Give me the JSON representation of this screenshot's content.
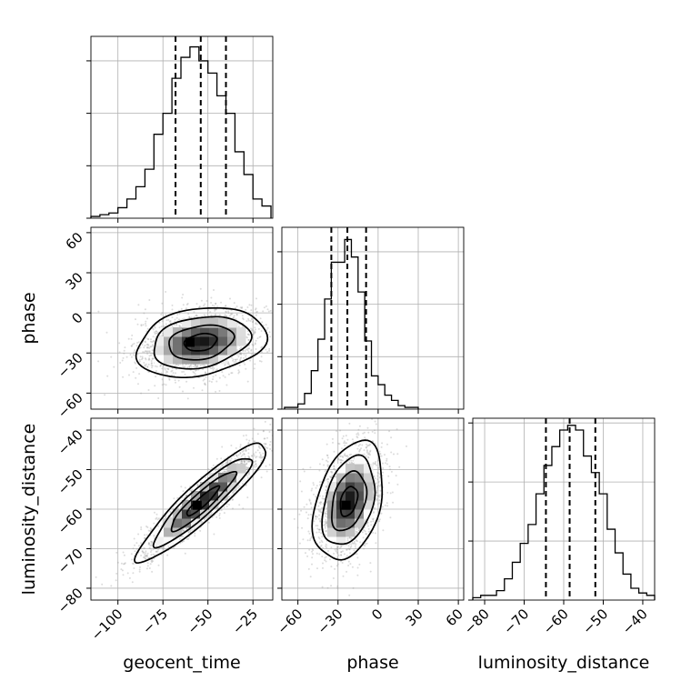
{
  "chart_data": {
    "type": "corner",
    "parameters": [
      "geocent_time",
      "phase",
      "luminosity_distance"
    ],
    "grid": true,
    "axes": {
      "geocent_time": {
        "range": [
          -115,
          -14
        ],
        "ticks": [
          -100,
          -75,
          -50,
          -25
        ],
        "tick_labels": [
          "−100",
          "−75",
          "−50",
          "−25"
        ]
      },
      "phase": {
        "range": [
          -72,
          64
        ],
        "ticks": [
          -60,
          -30,
          0,
          30,
          60
        ],
        "tick_labels": [
          "−60",
          "−30",
          "0",
          "30",
          "60"
        ]
      },
      "luminosity_distance": {
        "range": [
          -83,
          -37
        ],
        "ticks": [
          -80,
          -70,
          -60,
          -50,
          -40
        ],
        "tick_labels": [
          "−80",
          "−70",
          "−60",
          "−50",
          "−40"
        ]
      }
    },
    "histograms": [
      {
        "parameter": "geocent_time",
        "bin_edges": [
          -115,
          -110,
          -105,
          -100,
          -95,
          -90,
          -85,
          -80,
          -75,
          -70,
          -65,
          -60,
          -55,
          -50,
          -45,
          -40,
          -35,
          -30,
          -25,
          -20,
          -15
        ],
        "counts": [
          1,
          2,
          3,
          6,
          11,
          18,
          28,
          48,
          60,
          80,
          92,
          98,
          90,
          83,
          70,
          60,
          38,
          25,
          11,
          7
        ],
        "quantiles": [
          -68,
          -54,
          -40
        ],
        "ylim": [
          0,
          104
        ]
      },
      {
        "parameter": "phase",
        "bin_edges": [
          -70,
          -65,
          -60,
          -55,
          -50,
          -45,
          -40,
          -35,
          -30,
          -25,
          -20,
          -15,
          -10,
          -5,
          0,
          5,
          10,
          15,
          20,
          25,
          30
        ],
        "counts": [
          1,
          1,
          3,
          9,
          22,
          40,
          63,
          84,
          84,
          97,
          87,
          67,
          39,
          19,
          14,
          8,
          5,
          2,
          1,
          1
        ],
        "quantiles": [
          -35,
          -23,
          -9
        ],
        "ylim": [
          0,
          104
        ]
      },
      {
        "parameter": "luminosity_distance",
        "bin_edges": [
          -83,
          -81,
          -79,
          -77,
          -75,
          -73,
          -71,
          -69,
          -67,
          -65,
          -63,
          -61,
          -59,
          -57,
          -55,
          -53,
          -51,
          -49,
          -47,
          -45,
          -43,
          -41,
          -39,
          -37
        ],
        "counts": [
          1,
          2,
          2,
          4,
          9,
          16,
          24,
          32,
          45,
          57,
          65,
          72,
          74,
          72,
          61,
          54,
          45,
          30,
          20,
          11,
          5,
          3,
          2
        ],
        "quantiles": [
          -64.5,
          -58.5,
          -52
        ],
        "ylim": [
          0,
          77
        ]
      }
    ],
    "pairs": [
      {
        "x": "geocent_time",
        "y": "phase",
        "center": [
          -54,
          -22
        ],
        "sd": [
          18,
          13
        ],
        "correlation": 0.25,
        "peak": [
          -60,
          -22
        ],
        "contour_levels_sigma": [
          0.5,
          1.0,
          1.5,
          2.0
        ]
      },
      {
        "x": "geocent_time",
        "y": "luminosity_distance",
        "center": [
          -53,
          -58
        ],
        "sd": [
          18,
          7.5
        ],
        "correlation": 0.92,
        "peak": [
          -56,
          -59
        ],
        "contour_levels_sigma": [
          0.5,
          1.0,
          1.5,
          2.0
        ]
      },
      {
        "x": "phase",
        "y": "luminosity_distance",
        "center": [
          -22,
          -58
        ],
        "sd": [
          13,
          7.5
        ],
        "correlation": 0.35,
        "peak": [
          -24,
          -59
        ],
        "contour_levels_sigma": [
          0.5,
          1.0,
          1.5,
          2.0
        ]
      }
    ]
  }
}
